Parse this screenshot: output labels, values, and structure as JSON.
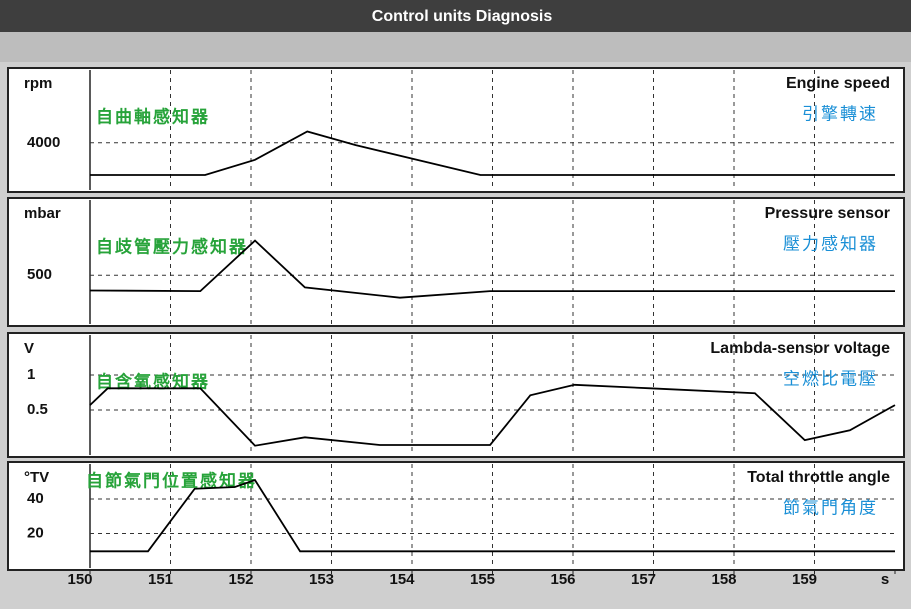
{
  "window_title": "Control units Diagnosis",
  "chart_data": [
    {
      "type": "line",
      "title": "Engine speed",
      "subtitle": "引擎轉速",
      "annotation": "自曲軸感知器",
      "y_label": "rpm",
      "x": [
        150,
        151.43,
        152.05,
        152.7,
        153.3,
        154.85,
        160
      ],
      "series": [
        {
          "color": "#000000",
          "values": [
            1150,
            1150,
            2500,
            5000,
            3800,
            1150,
            1150
          ]
        }
      ],
      "xlim": [
        150,
        160
      ],
      "ylim": [
        0,
        10000
      ],
      "yticks": [
        4000
      ],
      "grid": true
    },
    {
      "type": "line",
      "title": "Pressure sensor",
      "subtitle": "壓力感知器",
      "annotation": "自歧管壓力感知器",
      "y_label": "mbar",
      "x": [
        150,
        151.37,
        152.05,
        152.67,
        153.85,
        154.97,
        160
      ],
      "series": [
        {
          "color": "#000000",
          "values": [
            337,
            330,
            870,
            370,
            260,
            330,
            330
          ]
        }
      ],
      "xlim": [
        150,
        160
      ],
      "ylim": [
        0,
        1250
      ],
      "yticks": [
        500
      ],
      "grid": true
    },
    {
      "type": "line",
      "title": "Lambda-sensor voltage",
      "subtitle": "空燃比電壓",
      "annotation": "自含氧感知器",
      "y_label": "V",
      "x": [
        150,
        150.22,
        151.37,
        152.05,
        152.67,
        153.6,
        154.97,
        155.47,
        156.02,
        156.96,
        158.26,
        158.88,
        159.44,
        160
      ],
      "series": [
        {
          "color": "#000000",
          "values": [
            0.57,
            0.81,
            0.81,
            -0.01,
            0.11,
            0,
            0,
            0.71,
            0.86,
            0.81,
            0.74,
            0.07,
            0.21,
            0.57
          ]
        }
      ],
      "xlim": [
        150,
        160
      ],
      "ylim": [
        -0.1,
        1.5
      ],
      "yticks": [
        1,
        0.5
      ],
      "grid": true
    },
    {
      "type": "line",
      "title": "Total throttle angle",
      "subtitle": "節氣門角度",
      "annotation": "自節氣門位置感知器",
      "y_label": "°TV",
      "x": [
        150,
        150.72,
        151.3,
        151.8,
        152.05,
        152.61,
        160
      ],
      "series": [
        {
          "color": "#000000",
          "values": [
            9.7,
            9.7,
            46,
            47,
            51,
            9.7,
            9.7
          ]
        }
      ],
      "xlim": [
        150,
        160
      ],
      "ylim": [
        0,
        58
      ],
      "yticks": [
        40,
        20
      ],
      "grid": true,
      "xticks": [
        150,
        151,
        152,
        153,
        154,
        155,
        156,
        157,
        158,
        159,
        {
          "value": 160,
          "label": "s"
        }
      ]
    }
  ]
}
